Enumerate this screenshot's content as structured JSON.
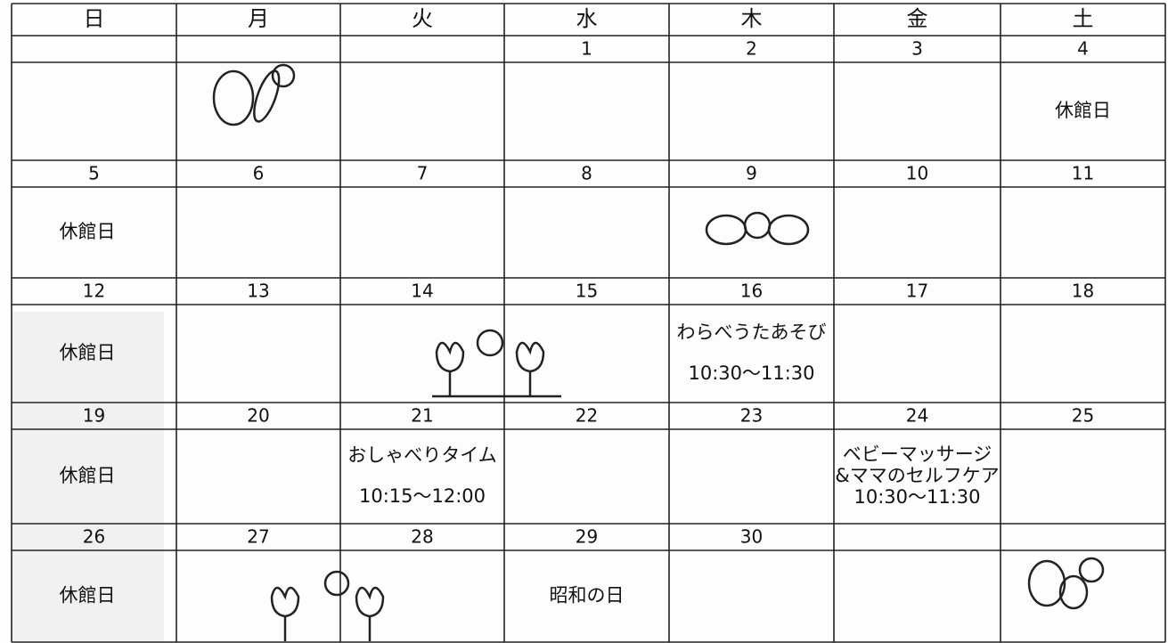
{
  "calendar": {
    "weekdays": [
      "日",
      "月",
      "火",
      "水",
      "木",
      "金",
      "土"
    ],
    "weeks": [
      [
        null,
        null,
        null,
        {
          "date": "1"
        },
        {
          "date": "2"
        },
        {
          "date": "3"
        },
        {
          "date": "4",
          "lines": [
            "休館日"
          ]
        }
      ],
      [
        {
          "date": "5",
          "lines": [
            "休館日"
          ]
        },
        {
          "date": "6"
        },
        {
          "date": "7"
        },
        {
          "date": "8"
        },
        {
          "date": "9"
        },
        {
          "date": "10"
        },
        {
          "date": "11"
        }
      ],
      [
        {
          "date": "12",
          "lines": [
            "休館日"
          ]
        },
        {
          "date": "13"
        },
        {
          "date": "14"
        },
        {
          "date": "15"
        },
        {
          "date": "16",
          "lines": [
            "わらべうたあそび",
            "10:30〜11:30"
          ]
        },
        {
          "date": "17"
        },
        {
          "date": "18"
        }
      ],
      [
        {
          "date": "19",
          "lines": [
            "休館日"
          ]
        },
        {
          "date": "20"
        },
        {
          "date": "21",
          "lines": [
            "おしゃべりタイム",
            "10:15〜12:00"
          ]
        },
        {
          "date": "22"
        },
        {
          "date": "23"
        },
        {
          "date": "24",
          "lines": [
            "ベビーマッサージ",
            "&ママのセルフケア",
            "10:30〜11:30"
          ]
        },
        {
          "date": "25"
        }
      ],
      [
        {
          "date": "26",
          "lines": [
            "休館日"
          ]
        },
        {
          "date": "27"
        },
        {
          "date": "28"
        },
        {
          "date": "29",
          "lines": [
            "昭和の日"
          ]
        },
        {
          "date": "30"
        },
        null,
        null
      ]
    ]
  }
}
